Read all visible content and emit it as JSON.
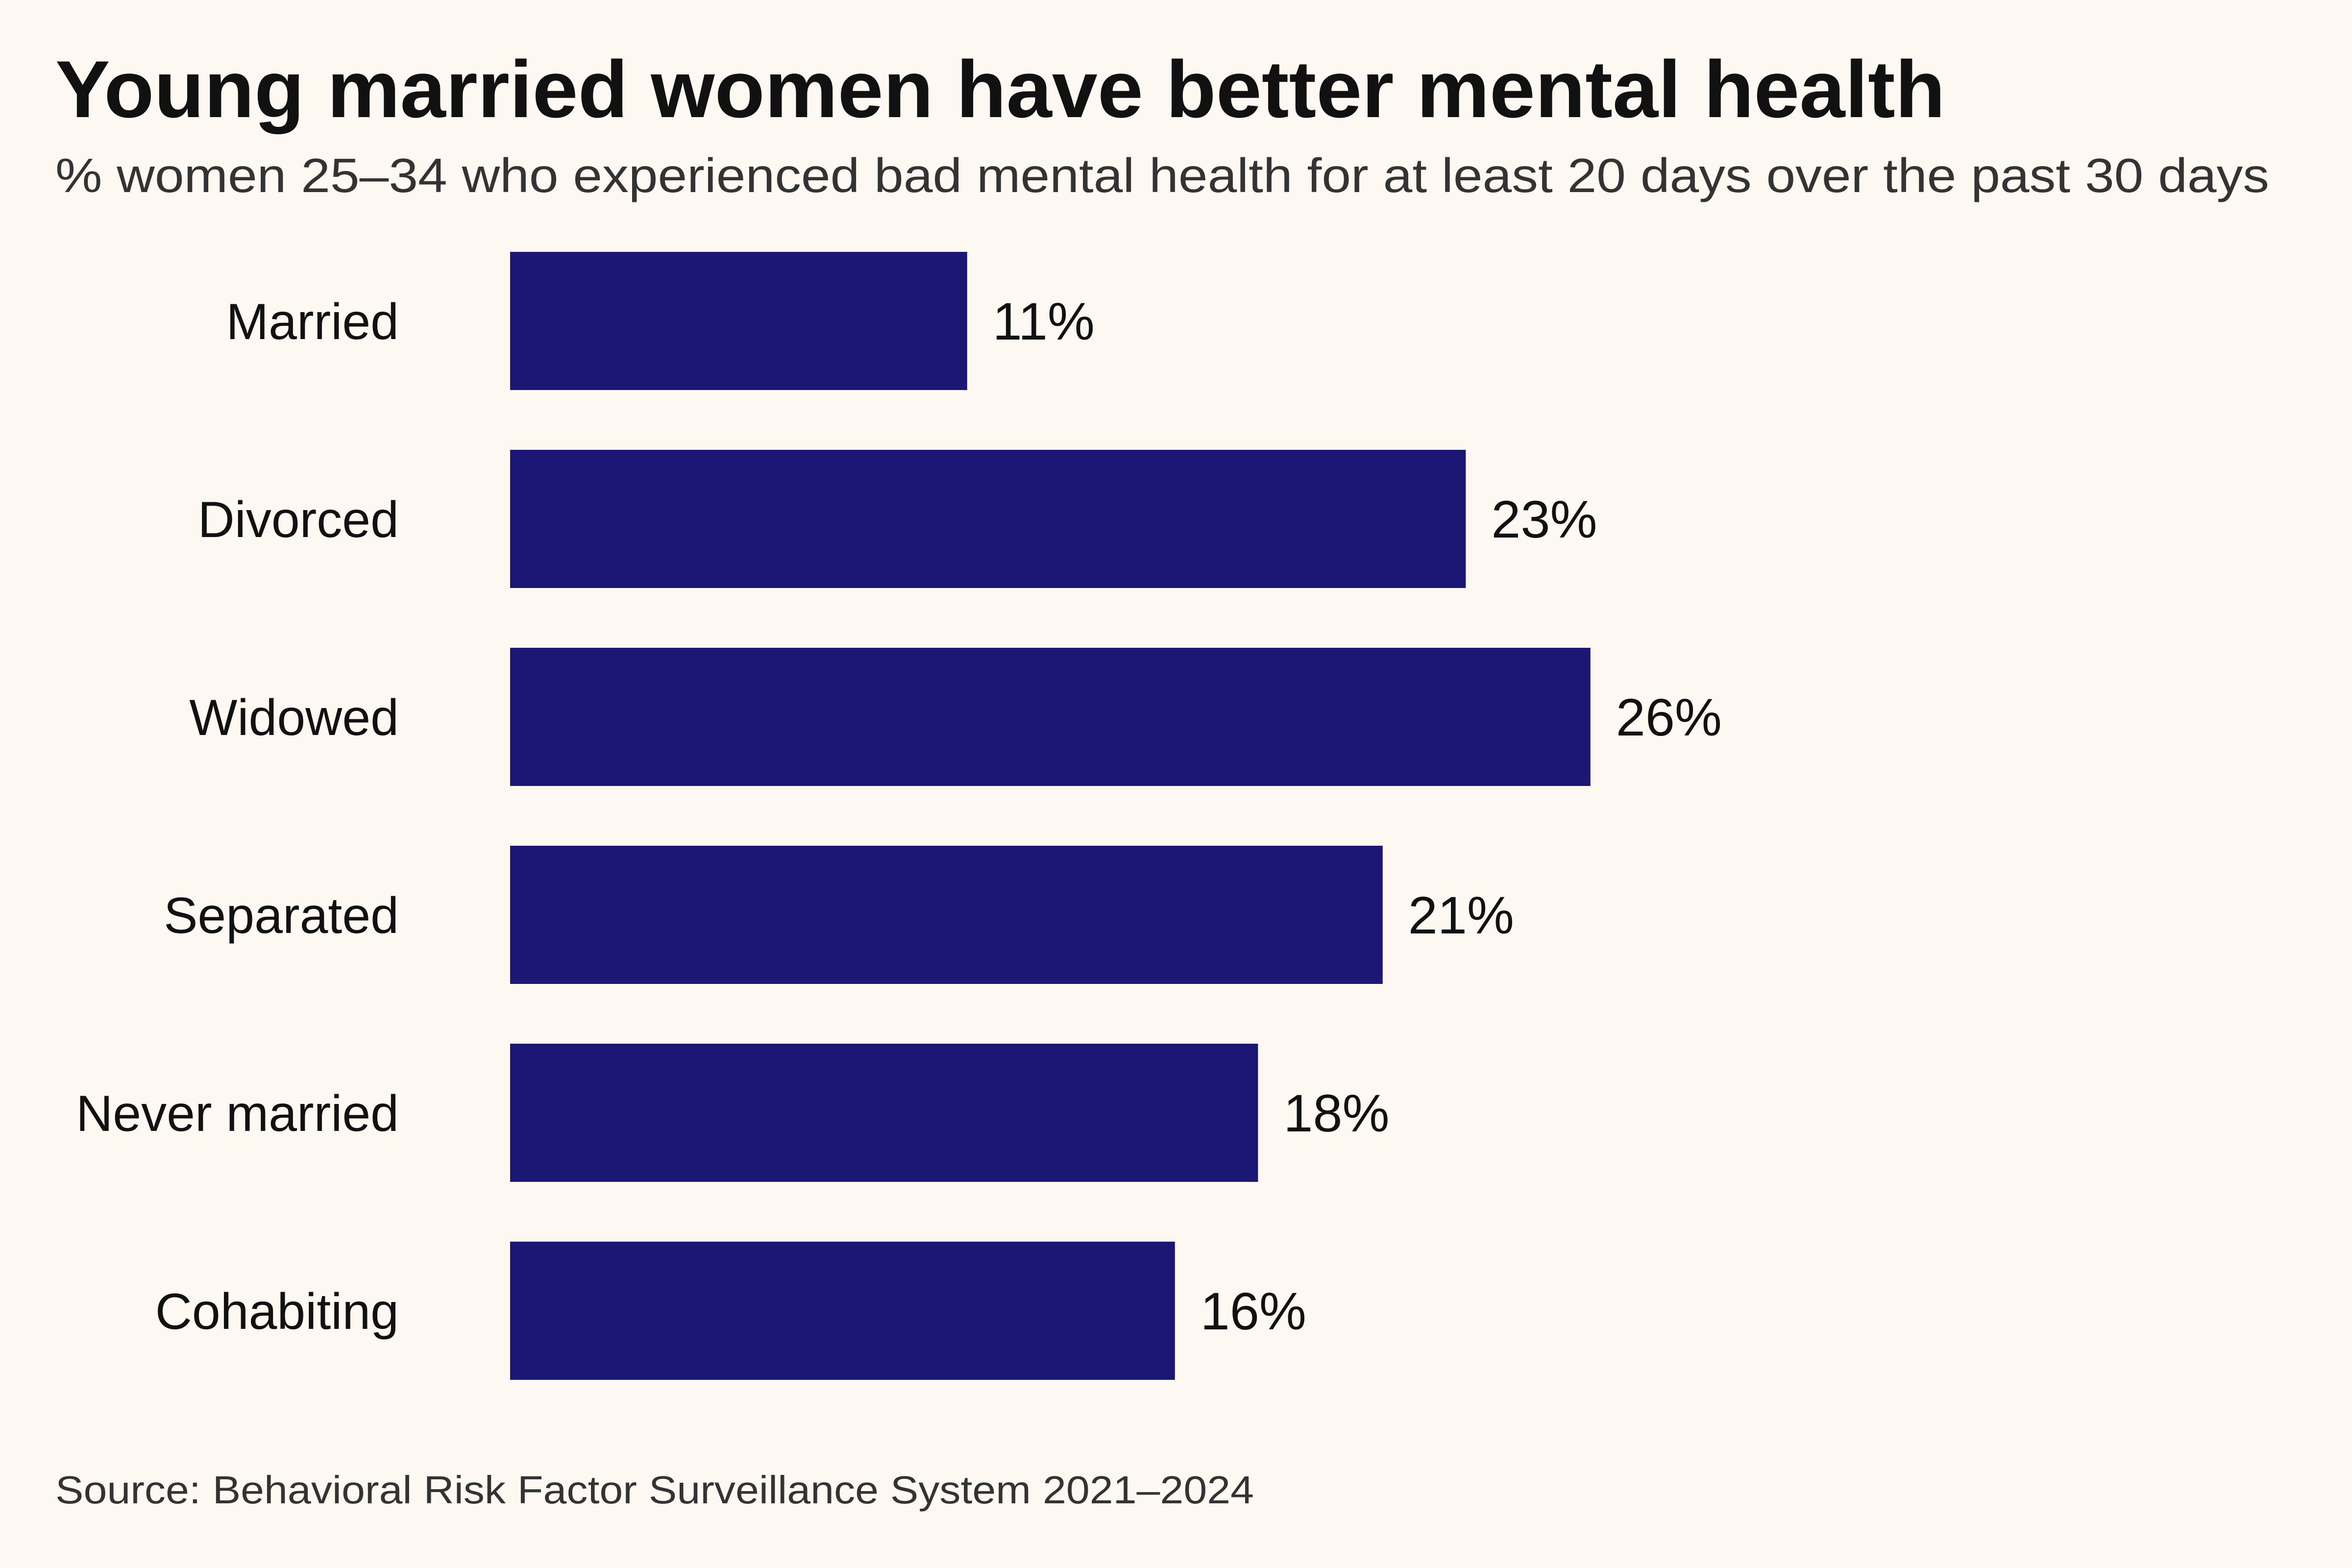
{
  "chart_data": {
    "type": "bar",
    "orientation": "horizontal",
    "title": "Young married women have better mental health",
    "subtitle": "% women 25–34 who experienced bad mental health for at least 20 days over the past 30 days",
    "categories": [
      "Married",
      "Divorced",
      "Widowed",
      "Separated",
      "Never married",
      "Cohabiting"
    ],
    "values": [
      11,
      23,
      26,
      21,
      18,
      16
    ],
    "value_labels": [
      "11%",
      "23%",
      "26%",
      "21%",
      "18%",
      "16%"
    ],
    "xlabel": "",
    "ylabel": "",
    "xlim": [
      0,
      30
    ],
    "grid": false,
    "source": "Source: Behavioral Risk Factor Surveillance System 2021–2024",
    "colors": {
      "bar": "#1c1675",
      "background": "#fef8f3",
      "text": "#111111"
    }
  }
}
